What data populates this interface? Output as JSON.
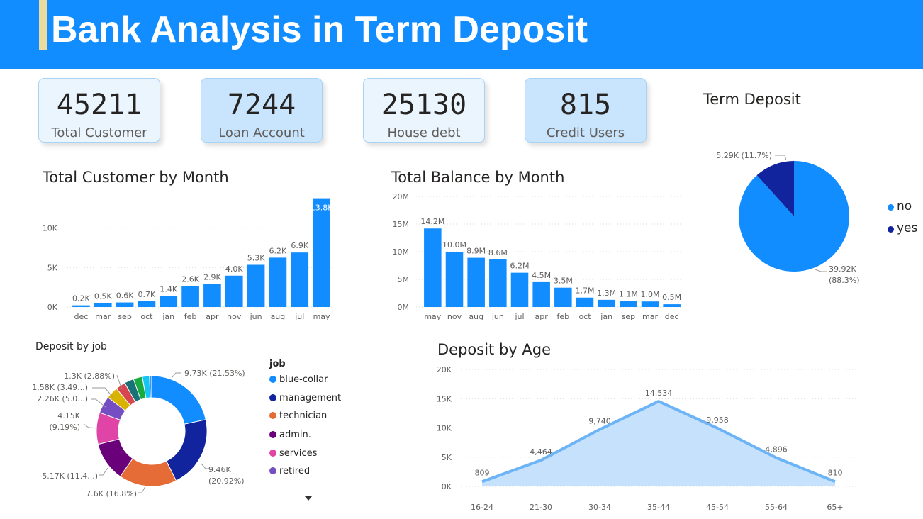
{
  "header": {
    "title": "Bank Analysis in Term Deposit"
  },
  "kpis": [
    {
      "value": "45211",
      "label": "Total Customer",
      "bg": "#EAF5FE"
    },
    {
      "value": "7244",
      "label": "Loan Account",
      "bg": "#C9E4FD"
    },
    {
      "value": "25130",
      "label": "House debt",
      "bg": "#EAF5FE"
    },
    {
      "value": "815",
      "label": "Credit Users",
      "bg": "#C9E4FD"
    }
  ],
  "titles": {
    "customer_by_month": "Total Customer by Month",
    "balance_by_month": "Total Balance by Month",
    "term_deposit": "Term Deposit",
    "deposit_by_job": "Deposit by job",
    "deposit_by_age": "Deposit by Age"
  },
  "chart_data": [
    {
      "id": "customer_by_month",
      "type": "bar",
      "title": "Total Customer by Month",
      "categories": [
        "dec",
        "mar",
        "sep",
        "oct",
        "jan",
        "feb",
        "apr",
        "nov",
        "jun",
        "aug",
        "jul",
        "may"
      ],
      "values": [
        214,
        477,
        579,
        738,
        1403,
        2649,
        2932,
        3970,
        5341,
        6247,
        6895,
        13766
      ],
      "data_labels": [
        "0.2K",
        "0.5K",
        "0.6K",
        "0.7K",
        "1.4K",
        "2.6K",
        "2.9K",
        "4.0K",
        "5.3K",
        "6.2K",
        "6.9K",
        "13.8K"
      ],
      "y_ticks": [
        0,
        5000,
        10000
      ],
      "y_tick_labels": [
        "0K",
        "5K",
        "10K"
      ],
      "ylim": [
        0,
        14000
      ],
      "color": "#118DFF",
      "grid": true
    },
    {
      "id": "balance_by_month",
      "type": "bar",
      "title": "Total Balance by Month",
      "categories": [
        "may",
        "nov",
        "aug",
        "jun",
        "jul",
        "apr",
        "feb",
        "oct",
        "jan",
        "sep",
        "mar",
        "dec"
      ],
      "values": [
        14.2,
        10.0,
        8.9,
        8.6,
        6.2,
        4.5,
        3.5,
        1.7,
        1.3,
        1.1,
        1.0,
        0.5
      ],
      "data_labels": [
        "14.2M",
        "10.0M",
        "8.9M",
        "8.6M",
        "6.2M",
        "4.5M",
        "3.5M",
        "1.7M",
        "1.3M",
        "1.1M",
        "1.0M",
        "0.5M"
      ],
      "y_ticks": [
        0,
        5,
        10,
        15,
        20
      ],
      "y_tick_labels": [
        "0M",
        "5M",
        "10M",
        "15M",
        "20M"
      ],
      "ylim": [
        0,
        20
      ],
      "color": "#118DFF",
      "grid": true
    },
    {
      "id": "term_deposit",
      "type": "pie",
      "title": "Term Deposit",
      "slices": [
        {
          "name": "no",
          "value": 39922,
          "label": "39.92K",
          "pct": "(88.3%)",
          "color": "#118DFF"
        },
        {
          "name": "yes",
          "value": 5289,
          "label": "5.29K (11.7%)",
          "pct": "",
          "color": "#12239E"
        }
      ],
      "legend_position": "right"
    },
    {
      "id": "deposit_by_job",
      "type": "pie",
      "title": "Deposit by job",
      "donut": true,
      "legend_title": "job",
      "legend_visible": [
        "blue-collar",
        "management",
        "technician",
        "admin.",
        "services",
        "retired"
      ],
      "slices": [
        {
          "name": "blue-collar",
          "value": 9732,
          "color": "#118DFF",
          "label": "9.73K (21.53%)"
        },
        {
          "name": "management",
          "value": 9458,
          "color": "#12239E",
          "label": "9.46K",
          "label2": "(20.92%)"
        },
        {
          "name": "technician",
          "value": 7597,
          "color": "#E66C37",
          "label": "7.6K (16.8%)"
        },
        {
          "name": "admin.",
          "value": 5171,
          "color": "#6B007B",
          "label": "5.17K (11.4...)"
        },
        {
          "name": "services",
          "value": 4154,
          "color": "#E044A7",
          "label": "4.15K",
          "label2": "(9.19%)"
        },
        {
          "name": "retired",
          "value": 2264,
          "color": "#744EC2",
          "label": "2.26K (5.0...)"
        },
        {
          "name": "",
          "value": 1579,
          "color": "#D9B300",
          "label": "1.58K (3.49...)"
        },
        {
          "name": "",
          "value": 1303,
          "color": "#D64550",
          "label": "1.3K (2.88%)"
        },
        {
          "name": "",
          "value": 1240,
          "color": "#197278",
          "label": ""
        },
        {
          "name": "",
          "value": 1180,
          "color": "#1AAB40",
          "label": ""
        },
        {
          "name": "",
          "value": 938,
          "color": "#15C6F4",
          "label": ""
        },
        {
          "name": "",
          "value": 288,
          "color": "#4092FF",
          "label": ""
        }
      ],
      "legend_position": "right"
    },
    {
      "id": "deposit_by_age",
      "type": "area",
      "title": "Deposit by Age",
      "categories": [
        "16-24",
        "21-30",
        "30-34",
        "35-44",
        "45-54",
        "55-64",
        "65+"
      ],
      "values": [
        809,
        4464,
        9740,
        14534,
        9958,
        4896,
        810
      ],
      "data_labels": [
        "809",
        "4,464",
        "9,740",
        "14,534",
        "9,958",
        "4,896",
        "810"
      ],
      "y_ticks": [
        0,
        5000,
        10000,
        15000,
        20000
      ],
      "y_tick_labels": [
        "0K",
        "5K",
        "10K",
        "15K",
        "20K"
      ],
      "ylim": [
        0,
        20000
      ],
      "line_color": "#6CB4F5",
      "fill_color": "#C5E1FB",
      "grid": true
    }
  ]
}
